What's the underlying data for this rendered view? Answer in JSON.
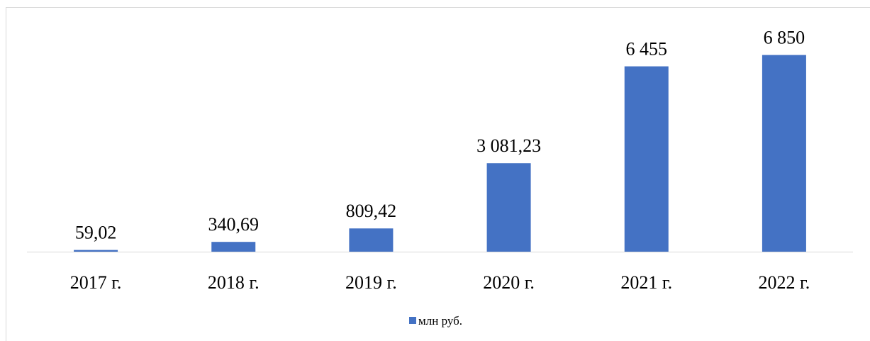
{
  "chart_data": {
    "type": "bar",
    "categories": [
      "2017 г.",
      "2018 г.",
      "2019 г.",
      "2020 г.",
      "2021 г.",
      "2022 г."
    ],
    "series": [
      {
        "name": "млн руб.",
        "color": "#4472c4",
        "values": [
          59.02,
          340.69,
          809.42,
          3081.23,
          6455,
          6850
        ],
        "value_labels": [
          "59,02",
          "340,69",
          "809,42",
          "3 081,23",
          "6 455",
          "6 850"
        ]
      }
    ],
    "ylim": [
      0,
      8000
    ],
    "legend": "bottom"
  }
}
